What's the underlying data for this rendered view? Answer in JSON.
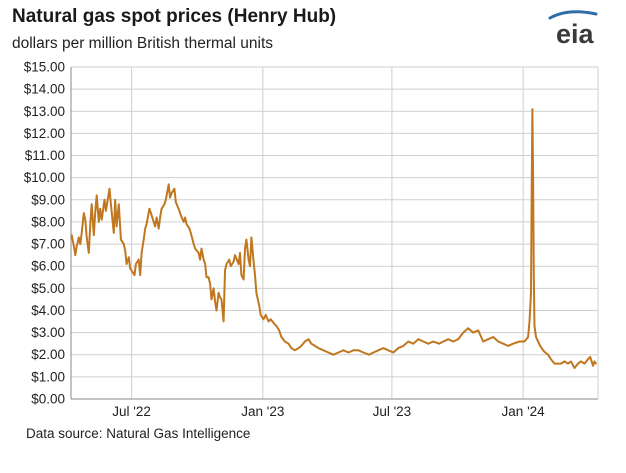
{
  "header": {
    "title": "Natural gas spot prices (Henry Hub)",
    "subtitle": "dollars per million British thermal units",
    "logo_text": "eia"
  },
  "footer": {
    "source": "Data source: Natural Gas Intelligence"
  },
  "colors": {
    "line": "#c0771f",
    "grid": "#cfcfcf",
    "axis": "#888888",
    "logo_blue": "#2f6ca8",
    "logo_text": "#3a3a3a"
  },
  "chart_data": {
    "type": "line",
    "title": "Natural gas spot prices (Henry Hub)",
    "subtitle": "dollars per million British thermal units",
    "xlabel": "",
    "ylabel": "",
    "ylim": [
      0,
      15
    ],
    "xlim": [
      "2022-04-07",
      "2024-04-15"
    ],
    "grid": true,
    "legend": "none",
    "y_ticks": [
      0,
      1,
      2,
      3,
      4,
      5,
      6,
      7,
      8,
      9,
      10,
      11,
      12,
      13,
      14,
      15
    ],
    "y_tick_labels": [
      "$0.00",
      "$1.00",
      "$2.00",
      "$3.00",
      "$4.00",
      "$5.00",
      "$6.00",
      "$7.00",
      "$8.00",
      "$9.00",
      "$10.00",
      "$11.00",
      "$12.00",
      "$13.00",
      "$14.00",
      "$15.00"
    ],
    "x_tick_labels": [
      {
        "date": "2022-07-01",
        "label": "Jul '22"
      },
      {
        "date": "2023-01-01",
        "label": "Jan '23"
      },
      {
        "date": "2023-07-01",
        "label": "Jul '23"
      },
      {
        "date": "2024-01-01",
        "label": "Jan '24"
      }
    ],
    "x_gridlines": [
      "2022-07-01",
      "2023-01-01",
      "2023-07-01",
      "2024-01-01"
    ],
    "series": [
      {
        "color": "#c0771f",
        "points": [
          [
            "2022-04-08",
            7.4
          ],
          [
            "2022-04-11",
            6.9
          ],
          [
            "2022-04-13",
            6.5
          ],
          [
            "2022-04-15",
            6.9
          ],
          [
            "2022-04-18",
            7.3
          ],
          [
            "2022-04-20",
            7.0
          ],
          [
            "2022-04-22",
            7.5
          ],
          [
            "2022-04-25",
            8.4
          ],
          [
            "2022-04-27",
            8.1
          ],
          [
            "2022-04-29",
            7.3
          ],
          [
            "2022-05-02",
            6.6
          ],
          [
            "2022-05-04",
            7.9
          ],
          [
            "2022-05-06",
            8.8
          ],
          [
            "2022-05-09",
            7.4
          ],
          [
            "2022-05-11",
            8.4
          ],
          [
            "2022-05-13",
            9.2
          ],
          [
            "2022-05-16",
            8.0
          ],
          [
            "2022-05-18",
            8.6
          ],
          [
            "2022-05-20",
            8.1
          ],
          [
            "2022-05-24",
            9.0
          ],
          [
            "2022-05-26",
            8.5
          ],
          [
            "2022-05-31",
            9.5
          ],
          [
            "2022-06-02",
            8.8
          ],
          [
            "2022-06-06",
            7.5
          ],
          [
            "2022-06-08",
            9.0
          ],
          [
            "2022-06-10",
            7.8
          ],
          [
            "2022-06-13",
            8.8
          ],
          [
            "2022-06-16",
            7.2
          ],
          [
            "2022-06-20",
            7.0
          ],
          [
            "2022-06-22",
            6.7
          ],
          [
            "2022-06-24",
            6.1
          ],
          [
            "2022-06-27",
            6.4
          ],
          [
            "2022-06-29",
            5.9
          ],
          [
            "2022-07-01",
            5.8
          ],
          [
            "2022-07-05",
            5.6
          ],
          [
            "2022-07-07",
            6.1
          ],
          [
            "2022-07-11",
            6.3
          ],
          [
            "2022-07-13",
            5.6
          ],
          [
            "2022-07-15",
            6.6
          ],
          [
            "2022-07-18",
            7.2
          ],
          [
            "2022-07-20",
            7.7
          ],
          [
            "2022-07-22",
            7.9
          ],
          [
            "2022-07-26",
            8.6
          ],
          [
            "2022-07-28",
            8.4
          ],
          [
            "2022-08-01",
            8.0
          ],
          [
            "2022-08-03",
            7.8
          ],
          [
            "2022-08-05",
            8.2
          ],
          [
            "2022-08-08",
            7.7
          ],
          [
            "2022-08-10",
            8.2
          ],
          [
            "2022-08-12",
            8.6
          ],
          [
            "2022-08-16",
            8.8
          ],
          [
            "2022-08-18",
            9.0
          ],
          [
            "2022-08-22",
            9.7
          ],
          [
            "2022-08-24",
            9.1
          ],
          [
            "2022-08-26",
            9.3
          ],
          [
            "2022-08-30",
            9.5
          ],
          [
            "2022-09-01",
            8.9
          ],
          [
            "2022-09-06",
            8.5
          ],
          [
            "2022-09-08",
            8.3
          ],
          [
            "2022-09-12",
            8.0
          ],
          [
            "2022-09-14",
            8.2
          ],
          [
            "2022-09-16",
            7.9
          ],
          [
            "2022-09-20",
            7.7
          ],
          [
            "2022-09-22",
            7.5
          ],
          [
            "2022-09-26",
            7.0
          ],
          [
            "2022-09-28",
            6.8
          ],
          [
            "2022-10-03",
            6.6
          ],
          [
            "2022-10-05",
            6.3
          ],
          [
            "2022-10-07",
            6.8
          ],
          [
            "2022-10-10",
            6.3
          ],
          [
            "2022-10-12",
            6.1
          ],
          [
            "2022-10-14",
            5.5
          ],
          [
            "2022-10-17",
            5.5
          ],
          [
            "2022-10-19",
            5.2
          ],
          [
            "2022-10-21",
            4.5
          ],
          [
            "2022-10-24",
            5.0
          ],
          [
            "2022-10-26",
            4.4
          ],
          [
            "2022-10-28",
            4.0
          ],
          [
            "2022-10-31",
            4.8
          ],
          [
            "2022-11-02",
            4.6
          ],
          [
            "2022-11-04",
            4.5
          ],
          [
            "2022-11-07",
            3.5
          ],
          [
            "2022-11-09",
            5.8
          ],
          [
            "2022-11-11",
            6.1
          ],
          [
            "2022-11-15",
            6.3
          ],
          [
            "2022-11-17",
            6.0
          ],
          [
            "2022-11-21",
            6.2
          ],
          [
            "2022-11-23",
            6.5
          ],
          [
            "2022-11-28",
            6.1
          ],
          [
            "2022-11-30",
            6.6
          ],
          [
            "2022-12-02",
            5.6
          ],
          [
            "2022-12-05",
            5.4
          ],
          [
            "2022-12-07",
            6.8
          ],
          [
            "2022-12-09",
            7.2
          ],
          [
            "2022-12-12",
            6.3
          ],
          [
            "2022-12-14",
            6.0
          ],
          [
            "2022-12-16",
            7.3
          ],
          [
            "2022-12-19",
            6.2
          ],
          [
            "2022-12-21",
            5.6
          ],
          [
            "2022-12-23",
            4.8
          ],
          [
            "2022-12-27",
            4.2
          ],
          [
            "2022-12-29",
            3.8
          ],
          [
            "2023-01-02",
            3.6
          ],
          [
            "2023-01-05",
            3.8
          ],
          [
            "2023-01-09",
            3.5
          ],
          [
            "2023-01-12",
            3.6
          ],
          [
            "2023-01-17",
            3.4
          ],
          [
            "2023-01-20",
            3.3
          ],
          [
            "2023-01-24",
            3.1
          ],
          [
            "2023-01-27",
            2.8
          ],
          [
            "2023-02-01",
            2.6
          ],
          [
            "2023-02-06",
            2.5
          ],
          [
            "2023-02-10",
            2.3
          ],
          [
            "2023-02-15",
            2.2
          ],
          [
            "2023-02-20",
            2.3
          ],
          [
            "2023-02-24",
            2.4
          ],
          [
            "2023-03-01",
            2.6
          ],
          [
            "2023-03-06",
            2.7
          ],
          [
            "2023-03-10",
            2.5
          ],
          [
            "2023-03-15",
            2.4
          ],
          [
            "2023-03-20",
            2.3
          ],
          [
            "2023-03-27",
            2.2
          ],
          [
            "2023-04-03",
            2.1
          ],
          [
            "2023-04-10",
            2.0
          ],
          [
            "2023-04-17",
            2.1
          ],
          [
            "2023-04-24",
            2.2
          ],
          [
            "2023-05-01",
            2.1
          ],
          [
            "2023-05-08",
            2.2
          ],
          [
            "2023-05-15",
            2.2
          ],
          [
            "2023-05-22",
            2.1
          ],
          [
            "2023-05-30",
            2.0
          ],
          [
            "2023-06-05",
            2.1
          ],
          [
            "2023-06-12",
            2.2
          ],
          [
            "2023-06-19",
            2.3
          ],
          [
            "2023-06-26",
            2.2
          ],
          [
            "2023-07-03",
            2.1
          ],
          [
            "2023-07-10",
            2.3
          ],
          [
            "2023-07-17",
            2.4
          ],
          [
            "2023-07-24",
            2.6
          ],
          [
            "2023-07-31",
            2.5
          ],
          [
            "2023-08-07",
            2.7
          ],
          [
            "2023-08-14",
            2.6
          ],
          [
            "2023-08-21",
            2.5
          ],
          [
            "2023-08-28",
            2.6
          ],
          [
            "2023-09-05",
            2.5
          ],
          [
            "2023-09-11",
            2.6
          ],
          [
            "2023-09-18",
            2.7
          ],
          [
            "2023-09-25",
            2.6
          ],
          [
            "2023-10-02",
            2.7
          ],
          [
            "2023-10-09",
            3.0
          ],
          [
            "2023-10-16",
            3.2
          ],
          [
            "2023-10-23",
            3.0
          ],
          [
            "2023-10-30",
            3.1
          ],
          [
            "2023-11-06",
            2.6
          ],
          [
            "2023-11-13",
            2.7
          ],
          [
            "2023-11-20",
            2.8
          ],
          [
            "2023-11-27",
            2.6
          ],
          [
            "2023-12-04",
            2.5
          ],
          [
            "2023-12-11",
            2.4
          ],
          [
            "2023-12-18",
            2.5
          ],
          [
            "2023-12-27",
            2.6
          ],
          [
            "2024-01-03",
            2.6
          ],
          [
            "2024-01-08",
            2.8
          ],
          [
            "2024-01-10",
            3.5
          ],
          [
            "2024-01-12",
            4.8
          ],
          [
            "2024-01-13",
            9.5
          ],
          [
            "2024-01-14",
            13.1
          ],
          [
            "2024-01-15",
            10.0
          ],
          [
            "2024-01-16",
            5.5
          ],
          [
            "2024-01-17",
            3.3
          ],
          [
            "2024-01-19",
            2.8
          ],
          [
            "2024-01-22",
            2.6
          ],
          [
            "2024-01-25",
            2.4
          ],
          [
            "2024-01-29",
            2.2
          ],
          [
            "2024-02-01",
            2.1
          ],
          [
            "2024-02-05",
            2.0
          ],
          [
            "2024-02-09",
            1.8
          ],
          [
            "2024-02-14",
            1.6
          ],
          [
            "2024-02-19",
            1.6
          ],
          [
            "2024-02-23",
            1.6
          ],
          [
            "2024-02-28",
            1.7
          ],
          [
            "2024-03-04",
            1.6
          ],
          [
            "2024-03-08",
            1.7
          ],
          [
            "2024-03-13",
            1.4
          ],
          [
            "2024-03-18",
            1.6
          ],
          [
            "2024-03-22",
            1.7
          ],
          [
            "2024-03-27",
            1.6
          ],
          [
            "2024-04-01",
            1.8
          ],
          [
            "2024-04-04",
            1.9
          ],
          [
            "2024-04-08",
            1.5
          ],
          [
            "2024-04-10",
            1.7
          ],
          [
            "2024-04-12",
            1.6
          ]
        ]
      }
    ]
  }
}
